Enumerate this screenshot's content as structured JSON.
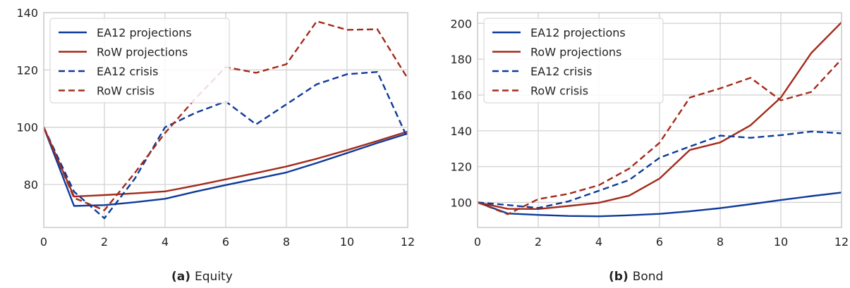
{
  "colors": {
    "ea12": "#0d3a9a",
    "row": "#a32a1a",
    "grid": "#d3d3d3",
    "frame": "#cccccc",
    "tick_text": "#222222",
    "legend_border": "#d9d9d9"
  },
  "captions": [
    {
      "label": "(a)",
      "text": "Equity"
    },
    {
      "label": "(b)",
      "text": "Bond"
    }
  ],
  "chart_data": [
    {
      "type": "line",
      "title": "",
      "xlabel": "",
      "ylabel": "",
      "xlim": [
        0,
        12
      ],
      "ylim": [
        65,
        140
      ],
      "xticks": [
        0,
        2,
        4,
        6,
        8,
        10,
        12
      ],
      "yticks": [
        80,
        100,
        120,
        140
      ],
      "grid": true,
      "legend_placement": "upper-left",
      "x": [
        0,
        1,
        2,
        3,
        4,
        5,
        6,
        7,
        8,
        9,
        10,
        11,
        12
      ],
      "series": [
        {
          "name": "EA12 projections",
          "color_key": "ea12",
          "style": "solid",
          "values": [
            100,
            72.5,
            72.8,
            73.8,
            75,
            77.5,
            79.8,
            82,
            84.2,
            87.5,
            91,
            94.5,
            97.8
          ]
        },
        {
          "name": "RoW projections",
          "color_key": "row",
          "style": "solid",
          "values": [
            100,
            75.8,
            76.3,
            76.9,
            77.6,
            79.6,
            81.8,
            84,
            86.3,
            89,
            92,
            95.2,
            98.5
          ]
        },
        {
          "name": "EA12 crisis",
          "color_key": "ea12",
          "style": "dashed",
          "values": [
            100,
            77.5,
            68.2,
            82,
            100,
            105,
            109,
            101,
            108,
            115,
            118.5,
            119.3,
            96
          ]
        },
        {
          "name": "RoW crisis",
          "color_key": "row",
          "style": "dashed",
          "values": [
            100,
            75.3,
            71,
            84,
            98,
            110,
            121,
            119,
            122,
            137,
            134,
            134.2,
            117
          ]
        }
      ]
    },
    {
      "type": "line",
      "title": "",
      "xlabel": "",
      "ylabel": "",
      "xlim": [
        0,
        12
      ],
      "ylim": [
        86,
        206
      ],
      "xticks": [
        0,
        2,
        4,
        6,
        8,
        10,
        12
      ],
      "yticks": [
        100,
        120,
        140,
        160,
        180,
        200
      ],
      "grid": true,
      "legend_placement": "upper-left",
      "x": [
        0,
        1,
        2,
        3,
        4,
        5,
        6,
        7,
        8,
        9,
        10,
        11,
        12
      ],
      "series": [
        {
          "name": "EA12 projections",
          "color_key": "ea12",
          "style": "solid",
          "values": [
            100,
            93.8,
            93,
            92.4,
            92.2,
            92.8,
            93.6,
            95,
            96.8,
            99,
            101.3,
            103.5,
            105.5
          ]
        },
        {
          "name": "RoW projections",
          "color_key": "row",
          "style": "solid",
          "values": [
            100,
            96.4,
            96.3,
            98,
            99.8,
            103.8,
            113.3,
            129.3,
            133.5,
            143.1,
            158.6,
            183.4,
            200.6
          ]
        },
        {
          "name": "EA12 crisis",
          "color_key": "ea12",
          "style": "dashed",
          "values": [
            100,
            98.5,
            96.9,
            100.6,
            106.5,
            112.5,
            124.9,
            131.2,
            137.3,
            136.1,
            137.6,
            139.6,
            138.6
          ]
        },
        {
          "name": "RoW crisis",
          "color_key": "row",
          "style": "dashed",
          "values": [
            100,
            93.4,
            101.8,
            104.8,
            109.6,
            118.9,
            133.3,
            158.6,
            163.7,
            169.6,
            157,
            161.7,
            180
          ]
        }
      ]
    }
  ]
}
